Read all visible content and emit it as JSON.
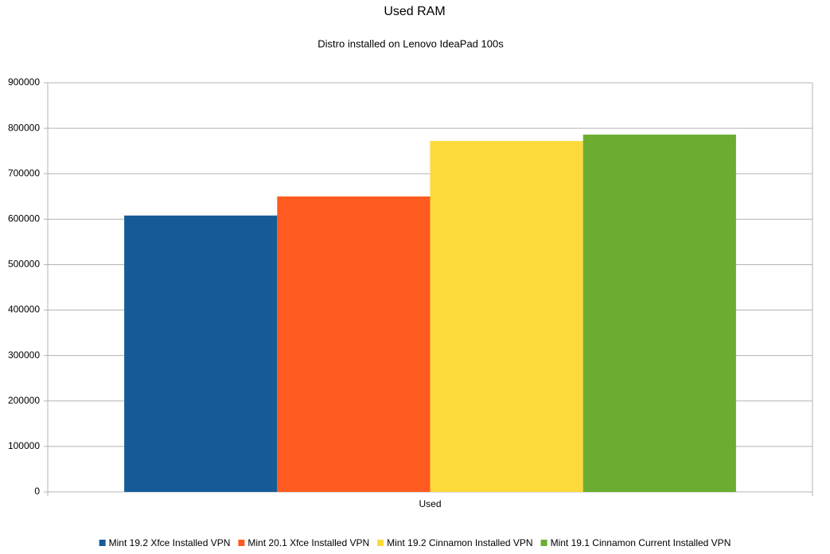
{
  "chart_data": {
    "type": "bar",
    "title": "Used RAM",
    "subtitle": "Distro installed on Lenovo IdeaPad 100s",
    "categories": [
      "Used"
    ],
    "series": [
      {
        "name": "Mint 19.2 Xfce Installed VPN",
        "color": "#165a98",
        "values": [
          608000
        ]
      },
      {
        "name": "Mint 20.1 Xfce Installed VPN",
        "color": "#ff5a20",
        "values": [
          650000
        ]
      },
      {
        "name": "Mint 19.2 Cinnamon Installed VPN",
        "color": "#fcda3b",
        "values": [
          772000
        ]
      },
      {
        "name": "Mint 19.1 Cinnamon Current Installed VPN",
        "color": "#6aad31",
        "values": [
          786000
        ]
      }
    ],
    "ylim": [
      0,
      900000
    ],
    "yticks": [
      0,
      100000,
      200000,
      300000,
      400000,
      500000,
      600000,
      700000,
      800000,
      900000
    ],
    "grid": true,
    "legend": "bottom"
  }
}
